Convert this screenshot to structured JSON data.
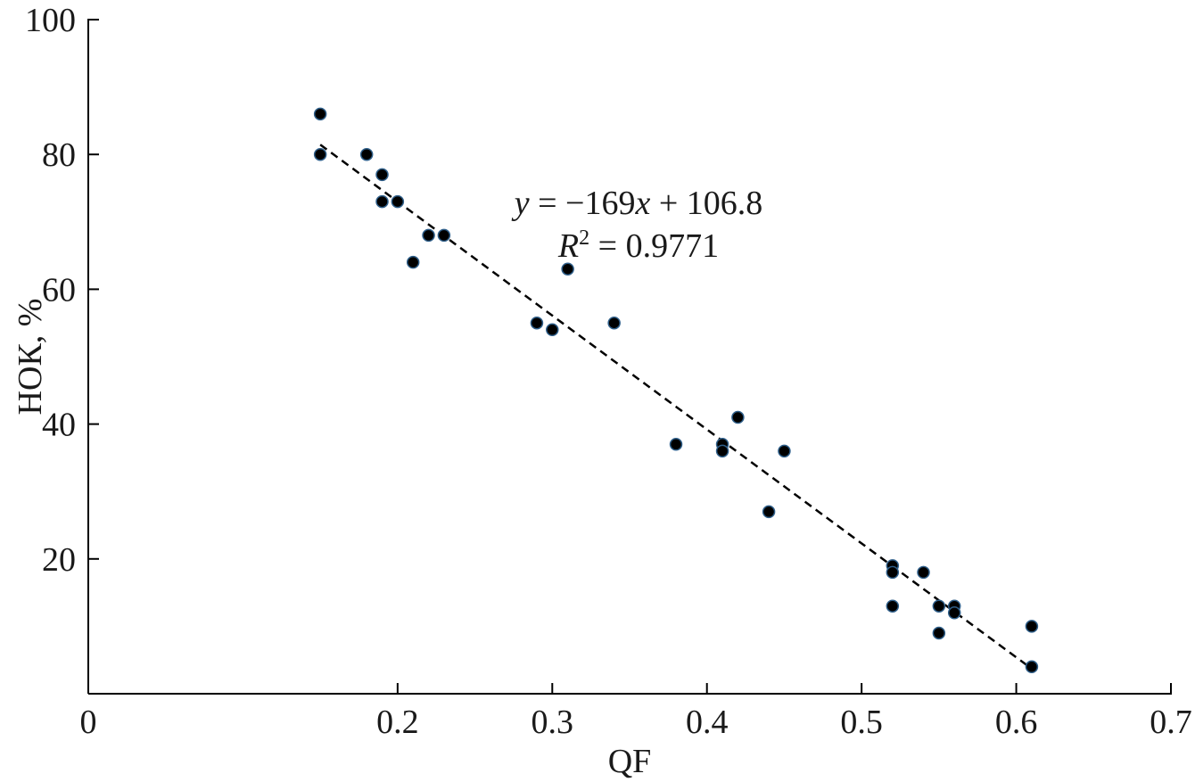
{
  "chart_data": {
    "type": "scatter",
    "title": "",
    "xlabel": "QF",
    "ylabel": "НОК, %",
    "xlim": [
      0,
      0.7
    ],
    "ylim": [
      0,
      100
    ],
    "x_ticks": [
      0,
      0.2,
      0.3,
      0.4,
      0.5,
      0.6,
      0.7
    ],
    "x_tick_labels": [
      "0",
      "0.2",
      "0.3",
      "0.4",
      "0.5",
      "0.6",
      "0.7"
    ],
    "y_ticks": [
      20,
      40,
      60,
      80,
      100
    ],
    "y_tick_labels": [
      "20",
      "40",
      "60",
      "80",
      "100"
    ],
    "grid": false,
    "series": [
      {
        "points": [
          {
            "x": 0.15,
            "y": 86
          },
          {
            "x": 0.15,
            "y": 80
          },
          {
            "x": 0.18,
            "y": 80
          },
          {
            "x": 0.19,
            "y": 77
          },
          {
            "x": 0.19,
            "y": 73
          },
          {
            "x": 0.2,
            "y": 73
          },
          {
            "x": 0.21,
            "y": 64
          },
          {
            "x": 0.22,
            "y": 68
          },
          {
            "x": 0.23,
            "y": 68
          },
          {
            "x": 0.29,
            "y": 55
          },
          {
            "x": 0.3,
            "y": 54
          },
          {
            "x": 0.31,
            "y": 63
          },
          {
            "x": 0.34,
            "y": 55
          },
          {
            "x": 0.38,
            "y": 37
          },
          {
            "x": 0.41,
            "y": 37
          },
          {
            "x": 0.41,
            "y": 36
          },
          {
            "x": 0.42,
            "y": 41
          },
          {
            "x": 0.44,
            "y": 27
          },
          {
            "x": 0.45,
            "y": 36
          },
          {
            "x": 0.52,
            "y": 19
          },
          {
            "x": 0.52,
            "y": 18
          },
          {
            "x": 0.52,
            "y": 13
          },
          {
            "x": 0.54,
            "y": 18
          },
          {
            "x": 0.55,
            "y": 13
          },
          {
            "x": 0.55,
            "y": 9
          },
          {
            "x": 0.56,
            "y": 13
          },
          {
            "x": 0.56,
            "y": 12
          },
          {
            "x": 0.61,
            "y": 10
          },
          {
            "x": 0.61,
            "y": 4
          }
        ]
      }
    ],
    "trendline": {
      "style": "dashed",
      "slope": -169,
      "intercept": 106.8,
      "x_range": [
        0.15,
        0.61
      ]
    },
    "annotations": {
      "equation": "y = −169x + 106.8",
      "r_squared": "R2 = 0.9771"
    }
  }
}
